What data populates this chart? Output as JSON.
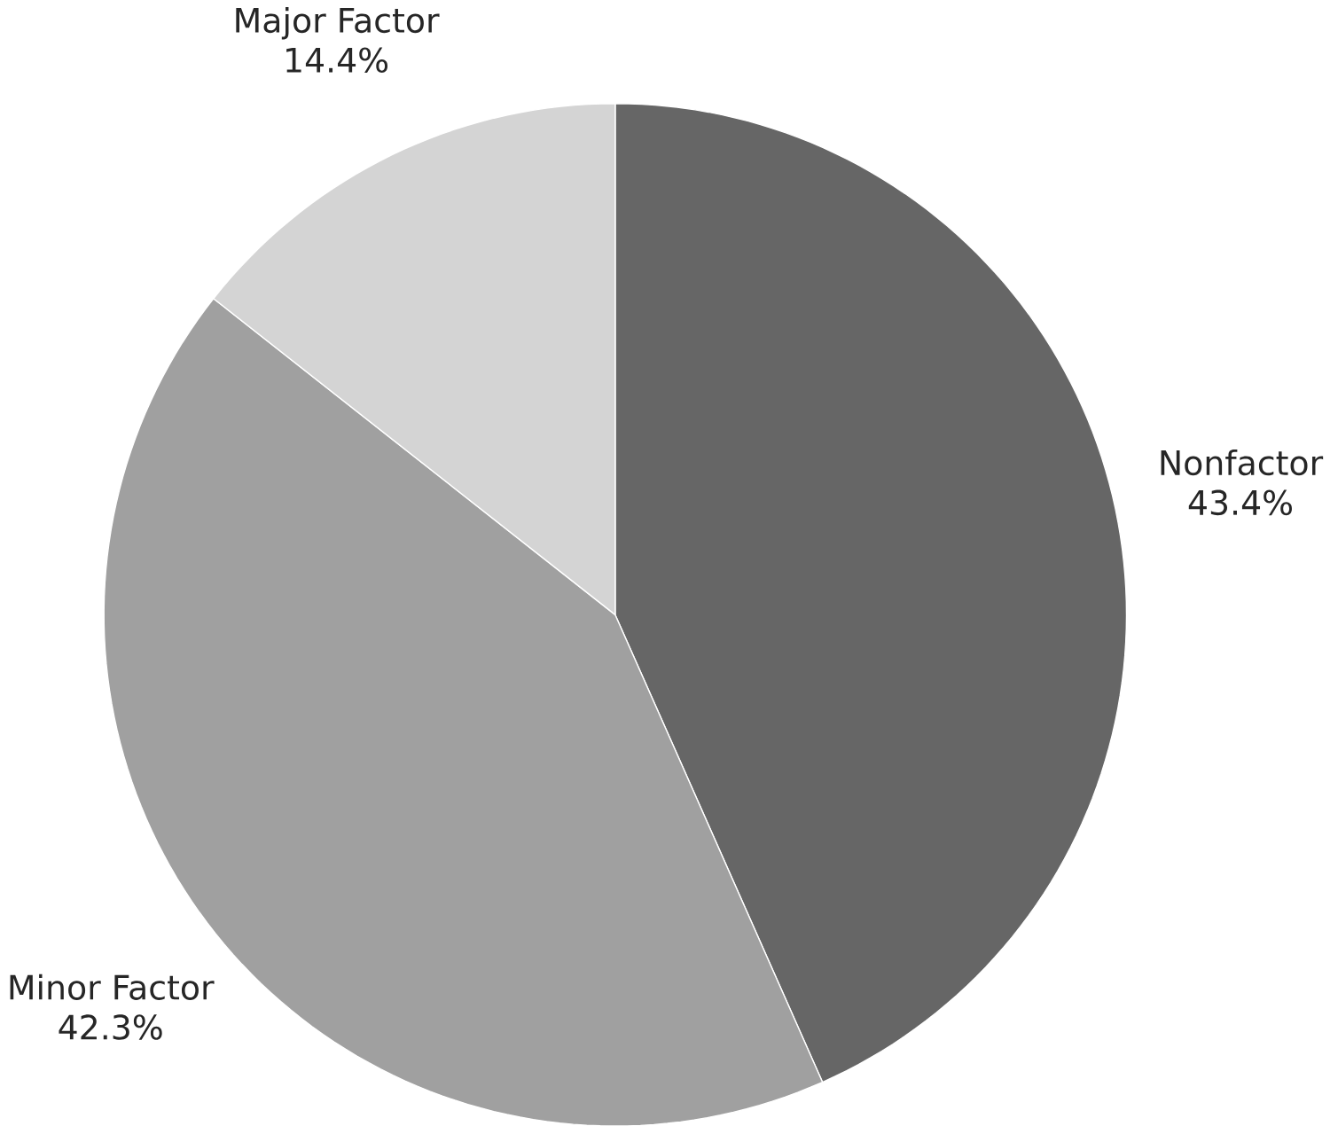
{
  "chart_data": {
    "type": "pie",
    "categories": [
      "Nonfactor",
      "Minor Factor",
      "Major Factor"
    ],
    "values": [
      43.4,
      42.3,
      14.4
    ],
    "value_labels": [
      "43.4%",
      "42.3%",
      "14.4%"
    ],
    "colors": [
      "#666666",
      "#a0a0a0",
      "#d4d4d4"
    ]
  }
}
